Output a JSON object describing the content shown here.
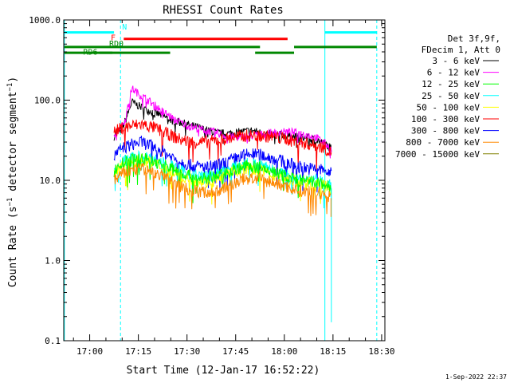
{
  "chart_data": {
    "type": "line",
    "title": "RHESSI Count Rates",
    "xlabel": "Start Time (12-Jan-17 16:52:22)",
    "ylabel_main": "Count Rate (s",
    "ylabel_sup1": "−1",
    "ylabel_mid": " detector segment",
    "ylabel_sup2": "−1",
    "ylabel_end": ")",
    "yscale": "log",
    "ylim": [
      0.1,
      1000
    ],
    "xlim_min": [
      1012,
      1111
    ],
    "x_ticks": [
      {
        "t": 1020,
        "label": "17:00"
      },
      {
        "t": 1035,
        "label": "17:15"
      },
      {
        "t": 1050,
        "label": "17:30"
      },
      {
        "t": 1065,
        "label": "17:45"
      },
      {
        "t": 1080,
        "label": "18:00"
      },
      {
        "t": 1095,
        "label": "18:15"
      },
      {
        "t": 1110,
        "label": "18:30"
      }
    ],
    "y_ticks": [
      {
        "v": 0.1,
        "label": "0.1"
      },
      {
        "v": 1,
        "label": "1.0"
      },
      {
        "v": 10,
        "label": "10.0"
      },
      {
        "v": 100,
        "label": "100.0"
      },
      {
        "v": 1000,
        "label": "1000.0"
      }
    ],
    "legend": {
      "header": [
        "Det 3f,9f,",
        "FDecim 1, Att 0"
      ],
      "placement": "right"
    },
    "series": [
      {
        "name": "3 - 6 keV",
        "color": "#000000",
        "x": [
          1027.5,
          1030,
          1031,
          1033,
          1035,
          1038,
          1042,
          1046,
          1050,
          1054,
          1058,
          1062,
          1066,
          1070,
          1074,
          1078,
          1082,
          1086,
          1090,
          1093,
          1094.5
        ],
        "y": [
          35,
          45,
          55,
          95,
          85,
          75,
          65,
          55,
          50,
          45,
          40,
          38,
          40,
          42,
          38,
          37,
          35,
          34,
          32,
          28,
          25
        ]
      },
      {
        "name": "6 - 12 keV",
        "color": "#ff00ff",
        "x": [
          1027.5,
          1030,
          1031,
          1033,
          1035,
          1038,
          1042,
          1046,
          1050,
          1054,
          1058,
          1062,
          1066,
          1070,
          1074,
          1078,
          1082,
          1086,
          1090,
          1093,
          1094.5
        ],
        "y": [
          38,
          48,
          58,
          140,
          120,
          100,
          75,
          58,
          48,
          44,
          40,
          36,
          34,
          36,
          38,
          40,
          40,
          38,
          34,
          28,
          24
        ]
      },
      {
        "name": "12 - 25 keV",
        "color": "#00ff00",
        "x": [
          1027.5,
          1030,
          1033,
          1036,
          1040,
          1044,
          1048,
          1052,
          1056,
          1060,
          1064,
          1068,
          1072,
          1076,
          1080,
          1084,
          1088,
          1092,
          1094.5
        ],
        "y": [
          13,
          16,
          18,
          19,
          17,
          15,
          12.5,
          11,
          10.5,
          11.5,
          13.5,
          15,
          14.5,
          13,
          11.5,
          10,
          9.5,
          9,
          8
        ]
      },
      {
        "name": "25 - 50 keV",
        "color": "#00ffff",
        "x": [
          1027.5,
          1030,
          1033,
          1036,
          1040,
          1044,
          1048,
          1052,
          1056,
          1060,
          1064,
          1068,
          1072,
          1076,
          1080,
          1084,
          1088,
          1092,
          1094.5
        ],
        "y": [
          14,
          17,
          19,
          20,
          18,
          16,
          13,
          11.5,
          11,
          12,
          14,
          16,
          15.5,
          14,
          12,
          10.5,
          10,
          9.5,
          8.5
        ]
      },
      {
        "name": "50 - 100 keV",
        "color": "#ffff00",
        "x": [
          1027.5,
          1030,
          1033,
          1036,
          1040,
          1044,
          1048,
          1052,
          1056,
          1060,
          1064,
          1068,
          1072,
          1076,
          1080,
          1084,
          1088,
          1092,
          1094.5
        ],
        "y": [
          12,
          15,
          17,
          18,
          16,
          14,
          11.5,
          10,
          9.5,
          10.5,
          12.5,
          14,
          13.5,
          12,
          10.5,
          9.5,
          9,
          8.5,
          7.5
        ]
      },
      {
        "name": "100 - 300 keV",
        "color": "#ff0000",
        "x": [
          1027.5,
          1030,
          1033,
          1036,
          1040,
          1044,
          1048,
          1052,
          1056,
          1060,
          1064,
          1068,
          1072,
          1076,
          1080,
          1084,
          1088,
          1092,
          1094.5
        ],
        "y": [
          40,
          45,
          48,
          50,
          45,
          38,
          32,
          30,
          30,
          32,
          34,
          36,
          36,
          35,
          33,
          30,
          28,
          26,
          22
        ]
      },
      {
        "name": "300 - 800 keV",
        "color": "#0000ff",
        "x": [
          1027.5,
          1030,
          1033,
          1036,
          1040,
          1044,
          1048,
          1052,
          1056,
          1060,
          1064,
          1068,
          1072,
          1076,
          1080,
          1084,
          1088,
          1092,
          1094.5
        ],
        "y": [
          20,
          25,
          28,
          30,
          26,
          21,
          17,
          15,
          14.5,
          15.5,
          18,
          21,
          21,
          19,
          17,
          15,
          14,
          13.5,
          12
        ]
      },
      {
        "name": "800 - 7000 keV",
        "color": "#ff8800",
        "x": [
          1027.5,
          1030,
          1033,
          1036,
          1040,
          1044,
          1048,
          1052,
          1056,
          1060,
          1064,
          1068,
          1072,
          1076,
          1080,
          1084,
          1088,
          1092,
          1094.5
        ],
        "y": [
          10,
          12,
          13.5,
          14,
          12.5,
          10.5,
          8.5,
          7.5,
          7,
          7.5,
          9,
          10.5,
          10.5,
          9.5,
          8.5,
          7.5,
          7,
          6.8,
          6
        ]
      },
      {
        "name": "7000 - 15000 keV",
        "color": "#808000",
        "x": [],
        "y": []
      }
    ],
    "drop_markers": {
      "x": 1094.5,
      "cyan_low": 0.17,
      "orange_low": 3.5
    },
    "bars": [
      {
        "label": "N",
        "color": "#00ffff",
        "x0": 1012.2,
        "x1": 1027.5,
        "y": 700
      },
      {
        "label": "",
        "color": "#00ffff",
        "x0": 1092.5,
        "x1": 1108.5,
        "y": 700
      },
      {
        "label": "F",
        "color": "#ff0000",
        "x0": 1030.5,
        "x1": 1081,
        "y": 580
      },
      {
        "label": "RD0",
        "color": "#008800",
        "x0": 1012.2,
        "x1": 1044.8,
        "y": 460
      },
      {
        "label": "",
        "color": "#008800",
        "x0": 1044.8,
        "x1": 1072.5,
        "y": 460
      },
      {
        "label": "",
        "color": "#008800",
        "x0": 1083,
        "x1": 1108.5,
        "y": 460
      },
      {
        "label": "RD6",
        "color": "#008800",
        "x0": 1012.2,
        "x1": 1027,
        "y": 390
      },
      {
        "label": "",
        "color": "#008800",
        "x0": 1023,
        "x1": 1044.8,
        "y": 390
      },
      {
        "label": "",
        "color": "#008800",
        "x0": 1071,
        "x1": 1083,
        "y": 390
      }
    ],
    "vlines": [
      {
        "t": 1012.2,
        "style": "solid"
      },
      {
        "t": 1029.5,
        "style": "dashed"
      },
      {
        "t": 1092.5,
        "style": "solid"
      },
      {
        "t": 1108.5,
        "style": "dashed"
      }
    ],
    "label_F": "F",
    "label_N": "N",
    "label_RD0": "RD0",
    "label_RD6": "RD6"
  },
  "footer": {
    "date": "1-Sep-2022 22:37"
  }
}
